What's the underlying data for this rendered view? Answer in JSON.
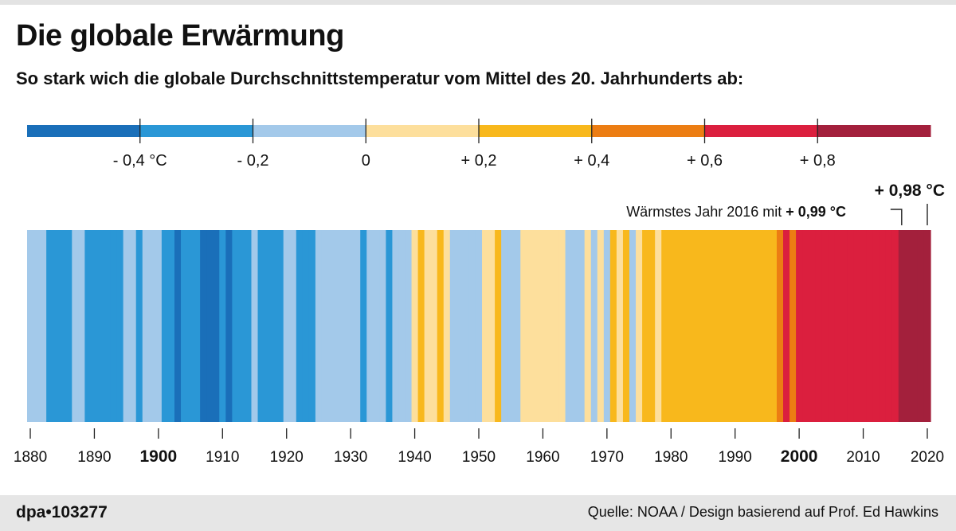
{
  "title": "Die globale Erwärmung",
  "subtitle": "So stark wich die globale Durchschnittstemperatur vom Mittel des 20. Jahrhunderts ab:",
  "colors": {
    "c0": "#1a6fb9",
    "c1": "#2a97d6",
    "c2": "#a3c9ea",
    "c3": "#fddf9c",
    "c4": "#f8b81c",
    "c5": "#ec7d13",
    "c6": "#db1f3e",
    "c7": "#a3203c",
    "tick": "#222222",
    "text": "#111111"
  },
  "chart_data": {
    "type": "heatmap",
    "title": "Die globale Erwärmung",
    "subtitle": "So stark wich die globale Durchschnittstemperatur vom Mittel des 20. Jahrhunderts ab:",
    "unit": "°C",
    "scale": {
      "boundaries": [
        -0.6,
        -0.4,
        -0.2,
        0,
        0.2,
        0.4,
        0.6,
        0.8,
        1.0
      ],
      "colors": [
        "#1a6fb9",
        "#2a97d6",
        "#a3c9ea",
        "#fddf9c",
        "#f8b81c",
        "#ec7d13",
        "#db1f3e",
        "#a3203c"
      ],
      "ticks": [
        -0.4,
        -0.2,
        0,
        0.2,
        0.4,
        0.6,
        0.8
      ],
      "tick_labels": [
        "- 0,4 °C",
        "- 0,2",
        "0",
        "+ 0,2",
        "+ 0,4",
        "+ 0,6",
        "+ 0,8"
      ]
    },
    "years": [
      1880,
      1881,
      1882,
      1883,
      1884,
      1885,
      1886,
      1887,
      1888,
      1889,
      1890,
      1891,
      1892,
      1893,
      1894,
      1895,
      1896,
      1897,
      1898,
      1899,
      1900,
      1901,
      1902,
      1903,
      1904,
      1905,
      1906,
      1907,
      1908,
      1909,
      1910,
      1911,
      1912,
      1913,
      1914,
      1915,
      1916,
      1917,
      1918,
      1919,
      1920,
      1921,
      1922,
      1923,
      1924,
      1925,
      1926,
      1927,
      1928,
      1929,
      1930,
      1931,
      1932,
      1933,
      1934,
      1935,
      1936,
      1937,
      1938,
      1939,
      1940,
      1941,
      1942,
      1943,
      1944,
      1945,
      1946,
      1947,
      1948,
      1949,
      1950,
      1951,
      1952,
      1953,
      1954,
      1955,
      1956,
      1957,
      1958,
      1959,
      1960,
      1961,
      1962,
      1963,
      1964,
      1965,
      1966,
      1967,
      1968,
      1969,
      1970,
      1971,
      1972,
      1973,
      1974,
      1975,
      1976,
      1977,
      1978,
      1979,
      1980,
      1981,
      1982,
      1983,
      1984,
      1985,
      1986,
      1987,
      1988,
      1989,
      1990,
      1991,
      1992,
      1993,
      1994,
      1995,
      1996,
      1997,
      1998,
      1999,
      2000,
      2001,
      2002,
      2003,
      2004,
      2005,
      2006,
      2007,
      2008,
      2009,
      2010,
      2011,
      2012,
      2013,
      2014,
      2015,
      2016,
      2017,
      2018,
      2019,
      2020
    ],
    "values": [
      -0.1,
      -0.05,
      -0.05,
      -0.25,
      -0.25,
      -0.25,
      -0.25,
      -0.15,
      -0.15,
      -0.25,
      -0.25,
      -0.25,
      -0.25,
      -0.25,
      -0.25,
      -0.15,
      -0.15,
      -0.25,
      -0.15,
      -0.15,
      -0.15,
      -0.25,
      -0.3,
      -0.45,
      -0.3,
      -0.25,
      -0.3,
      -0.45,
      -0.45,
      -0.45,
      -0.3,
      -0.45,
      -0.25,
      -0.25,
      -0.25,
      -0.15,
      -0.25,
      -0.25,
      -0.25,
      -0.25,
      -0.15,
      -0.15,
      -0.25,
      -0.25,
      -0.25,
      -0.15,
      -0.15,
      -0.15,
      -0.15,
      -0.15,
      -0.15,
      -0.15,
      -0.25,
      -0.15,
      -0.15,
      -0.15,
      -0.25,
      -0.1,
      -0.1,
      -0.1,
      0.1,
      0.2,
      0.1,
      0.1,
      0.2,
      0.1,
      -0.15,
      -0.15,
      -0.15,
      -0.15,
      -0.15,
      0.1,
      0.1,
      0.2,
      -0.15,
      -0.15,
      -0.15,
      0.1,
      0.1,
      0.1,
      0.1,
      0.1,
      0.1,
      0.1,
      -0.15,
      -0.15,
      -0.15,
      0.1,
      -0.15,
      0.1,
      -0.15,
      0.2,
      0.1,
      0.2,
      -0.15,
      0.1,
      0.2,
      0.2,
      0.1,
      0.2,
      0.3,
      0.3,
      0.3,
      0.35,
      0.2,
      0.3,
      0.35,
      0.35,
      0.3,
      0.3,
      0.35,
      0.35,
      0.35,
      0.35,
      0.35,
      0.35,
      0.35,
      0.5,
      0.6,
      0.5,
      0.6,
      0.6,
      0.7,
      0.7,
      0.6,
      0.7,
      0.7,
      0.65,
      0.65,
      0.7,
      0.7,
      0.65,
      0.7,
      0.7,
      0.7,
      0.7,
      0.99,
      0.95,
      0.9,
      0.95,
      0.98
    ],
    "x_ticks": [
      1880,
      1890,
      1900,
      1910,
      1920,
      1930,
      1940,
      1950,
      1960,
      1970,
      1980,
      1990,
      2000,
      2010,
      2020
    ],
    "x_tick_labels": [
      "1880",
      "1890",
      "1900",
      "1910",
      "1920",
      "1930",
      "1940",
      "1950",
      "1960",
      "1970",
      "1980",
      "1990",
      "2000",
      "2010",
      "2020"
    ],
    "bold_ticks": [
      "1900",
      "2000"
    ],
    "xlim": [
      1880,
      2020
    ],
    "annotations": {
      "latest_value": "+ 0,98 °C",
      "warmest_prefix": "Wärmstes Jahr 2016 mit",
      "warmest_value": "+ 0,99 °C"
    }
  },
  "footer": {
    "credit": "dpa•103277",
    "source": "Quelle: NOAA / Design basierend auf Prof. Ed Hawkins"
  }
}
